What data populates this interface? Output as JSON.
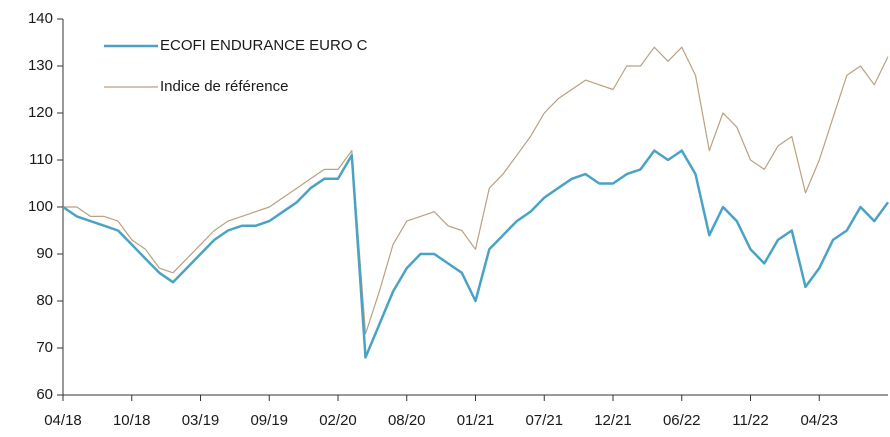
{
  "chart_data": {
    "type": "line",
    "categories": [
      "04/18",
      null,
      null,
      null,
      null,
      "10/18",
      null,
      null,
      null,
      null,
      "03/19",
      null,
      null,
      null,
      null,
      "09/19",
      null,
      null,
      null,
      null,
      "02/20",
      null,
      null,
      null,
      null,
      "08/20",
      null,
      null,
      null,
      null,
      "01/21",
      null,
      null,
      null,
      null,
      "07/21",
      null,
      null,
      null,
      null,
      "12/21",
      null,
      null,
      null,
      null,
      "06/22",
      null,
      null,
      null,
      null,
      "11/22",
      null,
      null,
      null,
      null,
      "04/23",
      null,
      null,
      null,
      null,
      null
    ],
    "series": [
      {
        "name": "ECOFI ENDURANCE EURO C",
        "color": "#4ba3c3",
        "values": [
          100,
          98,
          97,
          96,
          95,
          92,
          89,
          86,
          84,
          87,
          90,
          93,
          95,
          96,
          96,
          97,
          99,
          101,
          104,
          106,
          106,
          111,
          68,
          75,
          82,
          87,
          90,
          90,
          88,
          86,
          80,
          91,
          94,
          97,
          99,
          102,
          104,
          106,
          107,
          105,
          105,
          107,
          108,
          112,
          110,
          112,
          107,
          94,
          100,
          97,
          91,
          88,
          93,
          95,
          83,
          87,
          93,
          95,
          100,
          97,
          101
        ]
      },
      {
        "name": "Indice de référence",
        "color": "#b9a182",
        "values": [
          100,
          100,
          98,
          98,
          97,
          93,
          91,
          87,
          86,
          89,
          92,
          95,
          97,
          98,
          99,
          100,
          102,
          104,
          106,
          108,
          108,
          112,
          73,
          82,
          92,
          97,
          98,
          99,
          96,
          95,
          91,
          104,
          107,
          111,
          115,
          120,
          123,
          125,
          127,
          126,
          125,
          130,
          130,
          134,
          131,
          134,
          128,
          112,
          120,
          117,
          110,
          108,
          113,
          115,
          103,
          110,
          119,
          128,
          130,
          126,
          132
        ]
      }
    ],
    "ylim": [
      60,
      140
    ],
    "yticks": [
      60,
      70,
      80,
      90,
      100,
      110,
      120,
      130,
      140
    ]
  }
}
